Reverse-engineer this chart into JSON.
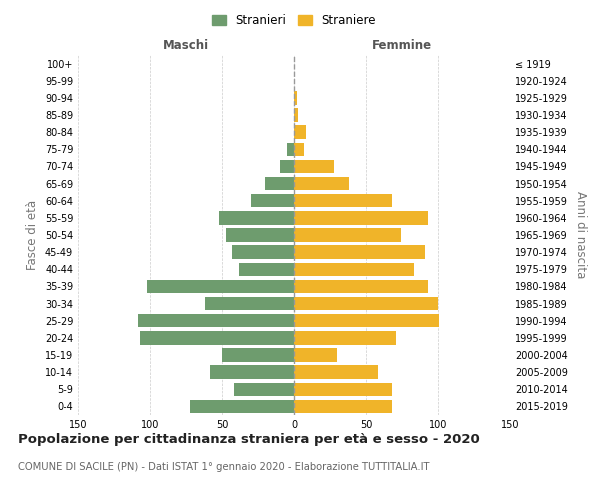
{
  "age_groups": [
    "0-4",
    "5-9",
    "10-14",
    "15-19",
    "20-24",
    "25-29",
    "30-34",
    "35-39",
    "40-44",
    "45-49",
    "50-54",
    "55-59",
    "60-64",
    "65-69",
    "70-74",
    "75-79",
    "80-84",
    "85-89",
    "90-94",
    "95-99",
    "100+"
  ],
  "birth_years": [
    "2015-2019",
    "2010-2014",
    "2005-2009",
    "2000-2004",
    "1995-1999",
    "1990-1994",
    "1985-1989",
    "1980-1984",
    "1975-1979",
    "1970-1974",
    "1965-1969",
    "1960-1964",
    "1955-1959",
    "1950-1954",
    "1945-1949",
    "1940-1944",
    "1935-1939",
    "1930-1934",
    "1925-1929",
    "1920-1924",
    "≤ 1919"
  ],
  "maschi": [
    72,
    42,
    58,
    50,
    107,
    108,
    62,
    102,
    38,
    43,
    47,
    52,
    30,
    20,
    10,
    5,
    0,
    0,
    0,
    0,
    0
  ],
  "femmine": [
    68,
    68,
    58,
    30,
    71,
    101,
    100,
    93,
    83,
    91,
    74,
    93,
    68,
    38,
    28,
    7,
    8,
    3,
    2,
    0,
    0
  ],
  "maschi_color": "#6e9c6e",
  "femmine_color": "#f0b429",
  "background_color": "#ffffff",
  "grid_color": "#cccccc",
  "title": "Popolazione per cittadinanza straniera per età e sesso - 2020",
  "subtitle": "COMUNE DI SACILE (PN) - Dati ISTAT 1° gennaio 2020 - Elaborazione TUTTITALIA.IT",
  "xlabel_left": "Maschi",
  "xlabel_right": "Femmine",
  "ylabel_left": "Fasce di età",
  "ylabel_right": "Anni di nascita",
  "legend_stranieri": "Stranieri",
  "legend_straniere": "Straniere",
  "xlim": 150,
  "title_fontsize": 9.5,
  "subtitle_fontsize": 7.2,
  "label_fontsize": 8.5,
  "tick_fontsize": 7.0,
  "legend_fontsize": 8.5
}
